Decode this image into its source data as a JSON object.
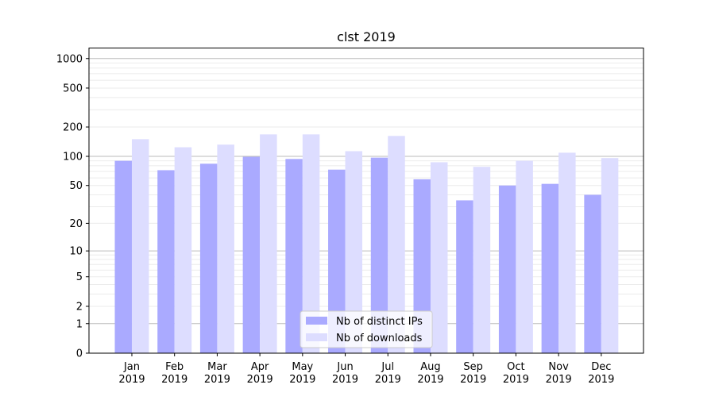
{
  "chart_data": {
    "type": "bar",
    "title": "clst 2019",
    "xlabel": "",
    "ylabel": "",
    "yscale": "log10(1+y)",
    "ylim": [
      0,
      1280
    ],
    "yticks": [
      0,
      1,
      2,
      5,
      10,
      20,
      50,
      100,
      200,
      500,
      1000
    ],
    "grid": true,
    "legend_position": "bottom-center",
    "categories": [
      {
        "month": "Jan",
        "year": "2019"
      },
      {
        "month": "Feb",
        "year": "2019"
      },
      {
        "month": "Mar",
        "year": "2019"
      },
      {
        "month": "Apr",
        "year": "2019"
      },
      {
        "month": "May",
        "year": "2019"
      },
      {
        "month": "Jun",
        "year": "2019"
      },
      {
        "month": "Jul",
        "year": "2019"
      },
      {
        "month": "Aug",
        "year": "2019"
      },
      {
        "month": "Sep",
        "year": "2019"
      },
      {
        "month": "Oct",
        "year": "2019"
      },
      {
        "month": "Nov",
        "year": "2019"
      },
      {
        "month": "Dec",
        "year": "2019"
      }
    ],
    "series": [
      {
        "name": "Nb of distinct IPs",
        "color": "#aaaaff",
        "values": [
          90,
          72,
          84,
          99,
          94,
          73,
          97,
          58,
          35,
          50,
          52,
          40
        ]
      },
      {
        "name": "Nb of downloads",
        "color": "#ddddff",
        "values": [
          150,
          124,
          132,
          168,
          168,
          113,
          162,
          87,
          78,
          90,
          109,
          96
        ]
      }
    ]
  }
}
